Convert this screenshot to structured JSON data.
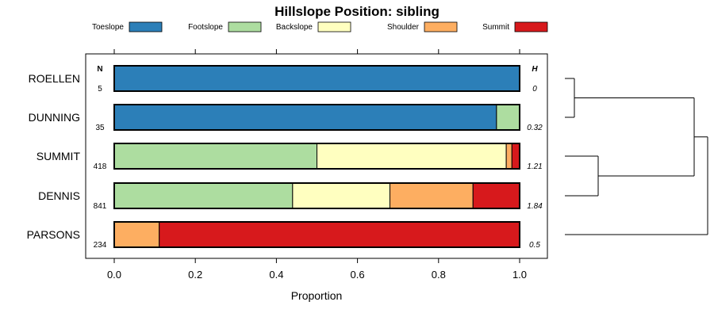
{
  "chart_data": {
    "type": "bar",
    "orientation": "horizontal",
    "stacked": true,
    "title": "Hillslope Position: sibling",
    "xlabel": "Proportion",
    "ylabel": "",
    "xlim": [
      0,
      1
    ],
    "xticks": [
      "0.0",
      "0.2",
      "0.4",
      "0.6",
      "0.8",
      "1.0"
    ],
    "n_header": "N",
    "h_header": "H",
    "legend_position": "top",
    "series": [
      {
        "name": "Toeslope",
        "color": "#2c7fb8"
      },
      {
        "name": "Footslope",
        "color": "#addda0"
      },
      {
        "name": "Backslope",
        "color": "#ffffc0"
      },
      {
        "name": "Shoulder",
        "color": "#fdae61"
      },
      {
        "name": "Summit",
        "color": "#d7191c"
      }
    ],
    "rows": [
      {
        "label": "ROELLEN",
        "n": "5",
        "h": "0",
        "values": [
          1.0,
          0.0,
          0.0,
          0.0,
          0.0
        ]
      },
      {
        "label": "DUNNING",
        "n": "35",
        "h": "0.32",
        "values": [
          0.943,
          0.057,
          0.0,
          0.0,
          0.0
        ]
      },
      {
        "label": "SUMMIT",
        "n": "418",
        "h": "1.21",
        "values": [
          0.0,
          0.5,
          0.467,
          0.014,
          0.019
        ]
      },
      {
        "label": "DENNIS",
        "n": "841",
        "h": "1.84",
        "values": [
          0.0,
          0.44,
          0.24,
          0.205,
          0.115
        ]
      },
      {
        "label": "PARSONS",
        "n": "234",
        "h": "0.5",
        "values": [
          0.0,
          0.0,
          0.0,
          0.111,
          0.889
        ]
      }
    ],
    "dendrogram": {
      "merges": [
        {
          "a": "ROELLEN",
          "b": "DUNNING"
        },
        {
          "a": "SUMMIT",
          "b": "DENNIS"
        },
        {
          "a": "ROELLEN+DUNNING",
          "b": "SUMMIT+DENNIS"
        },
        {
          "a": "ALL4",
          "b": "PARSONS"
        }
      ]
    }
  }
}
